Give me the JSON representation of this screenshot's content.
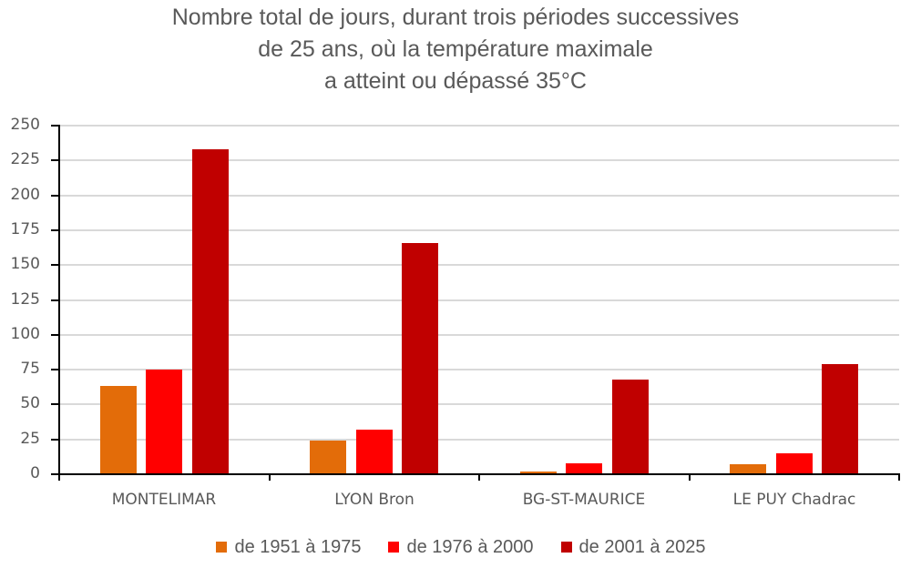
{
  "title": {
    "lines": [
      "Nombre total de jours, durant trois périodes successives",
      "de 25 ans, où la température maximale",
      "a atteint ou dépassé 35°C"
    ]
  },
  "yaxis": {
    "ticks": [
      "250",
      "225",
      "200",
      "175",
      "150",
      "125",
      "100",
      "75",
      "50",
      "25",
      "0"
    ]
  },
  "legend": {
    "items": [
      {
        "label": "de 1951 à 1975",
        "color": "#E36C09"
      },
      {
        "label": "de 1976 à 2000",
        "color": "#FF0000"
      },
      {
        "label": "de 2001 à 2025",
        "color": "#C00000"
      }
    ]
  },
  "categories": [
    "MONTELIMAR",
    "LYON Bron",
    "BG-ST-MAURICE",
    "LE PUY Chadrac"
  ],
  "chart_data": {
    "type": "bar",
    "title": "Nombre total de jours, durant trois périodes successives de 25 ans, où la température maximale a atteint ou dépassé 35°C",
    "categories": [
      "MONTELIMAR",
      "LYON Bron",
      "BG-ST-MAURICE",
      "LE PUY Chadrac"
    ],
    "series": [
      {
        "name": "de 1951 à 1975",
        "color": "#E36C09",
        "values": [
          63,
          24,
          2,
          7
        ]
      },
      {
        "name": "de 1976 à 2000",
        "color": "#FF0000",
        "values": [
          75,
          32,
          8,
          15
        ]
      },
      {
        "name": "de 2001 à 2025",
        "color": "#C00000",
        "values": [
          233,
          166,
          68,
          79
        ]
      }
    ],
    "xlabel": "",
    "ylabel": "",
    "ylim": [
      0,
      250
    ],
    "yticks": [
      0,
      25,
      50,
      75,
      100,
      125,
      150,
      175,
      200,
      225,
      250
    ],
    "grid": true,
    "legend_position": "bottom"
  }
}
